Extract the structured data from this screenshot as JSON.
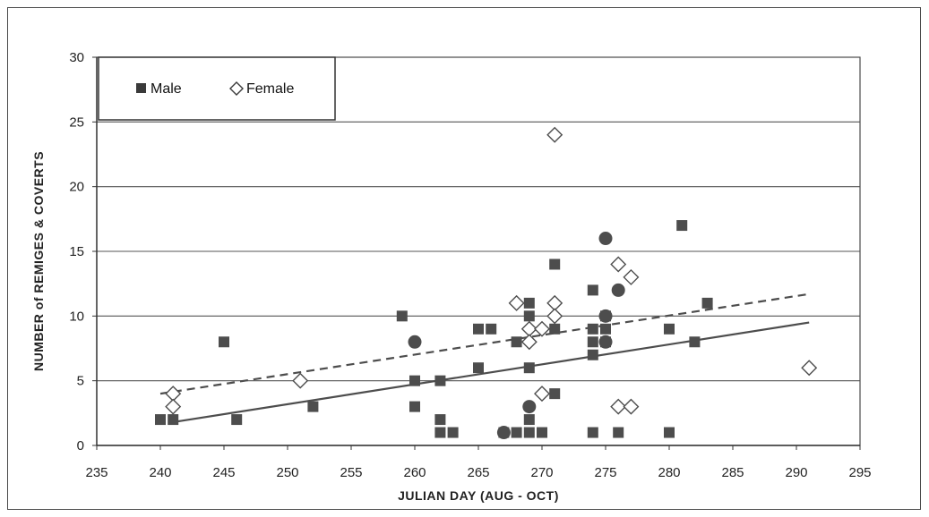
{
  "chart_data": {
    "type": "scatter",
    "title": "",
    "xlabel": "JULIAN DAY (AUG - OCT)",
    "ylabel": "NUMBER of REMIGES & COVERTS",
    "xlim": [
      235,
      295
    ],
    "ylim": [
      0,
      30
    ],
    "xticks": [
      235,
      240,
      245,
      250,
      255,
      260,
      265,
      270,
      275,
      280,
      285,
      290,
      295
    ],
    "yticks": [
      0,
      5,
      10,
      15,
      20,
      25,
      30
    ],
    "grid": "horizontal",
    "legend_position": "top-left",
    "series": [
      {
        "name": "Male",
        "marker": "filled-square",
        "color": "#4d4d4d",
        "points": [
          [
            240,
            2
          ],
          [
            241,
            2
          ],
          [
            245,
            8
          ],
          [
            246,
            2
          ],
          [
            252,
            3
          ],
          [
            259,
            10
          ],
          [
            260,
            5
          ],
          [
            260,
            3
          ],
          [
            262,
            5
          ],
          [
            262,
            2
          ],
          [
            262,
            1
          ],
          [
            263,
            1
          ],
          [
            265,
            9
          ],
          [
            265,
            6
          ],
          [
            266,
            9
          ],
          [
            267,
            1
          ],
          [
            268,
            1
          ],
          [
            268,
            8
          ],
          [
            269,
            11
          ],
          [
            269,
            10
          ],
          [
            269,
            6
          ],
          [
            269,
            2
          ],
          [
            269,
            1
          ],
          [
            270,
            1
          ],
          [
            271,
            14
          ],
          [
            271,
            9
          ],
          [
            271,
            4
          ],
          [
            274,
            12
          ],
          [
            274,
            9
          ],
          [
            274,
            8
          ],
          [
            274,
            7
          ],
          [
            274,
            1
          ],
          [
            275,
            10
          ],
          [
            275,
            9
          ],
          [
            275,
            8
          ],
          [
            276,
            1
          ],
          [
            280,
            9
          ],
          [
            280,
            1
          ],
          [
            281,
            17
          ],
          [
            282,
            8
          ],
          [
            283,
            11
          ]
        ]
      },
      {
        "name": "Female",
        "marker": "open-diamond",
        "color": "#4d4d4d",
        "points": [
          [
            241,
            4
          ],
          [
            241,
            3
          ],
          [
            251,
            5
          ],
          [
            268,
            11
          ],
          [
            269,
            9
          ],
          [
            269,
            8
          ],
          [
            270,
            9
          ],
          [
            270,
            4
          ],
          [
            271,
            24
          ],
          [
            271,
            11
          ],
          [
            271,
            10
          ],
          [
            276,
            14
          ],
          [
            276,
            3
          ],
          [
            277,
            13
          ],
          [
            277,
            3
          ],
          [
            291,
            6
          ]
        ]
      },
      {
        "name": "",
        "marker": "filled-circle",
        "color": "#4d4d4d",
        "points": [
          [
            260,
            8
          ],
          [
            267,
            1
          ],
          [
            269,
            3
          ],
          [
            275,
            16
          ],
          [
            275,
            10
          ],
          [
            275,
            8
          ],
          [
            276,
            12
          ]
        ]
      }
    ],
    "trendlines": [
      {
        "series": "Male",
        "style": "solid",
        "from": [
          241,
          1.8
        ],
        "to": [
          291,
          9.5
        ]
      },
      {
        "series": "Female",
        "style": "dashed",
        "from": [
          240,
          4.0
        ],
        "to": [
          291,
          11.7
        ]
      }
    ]
  }
}
